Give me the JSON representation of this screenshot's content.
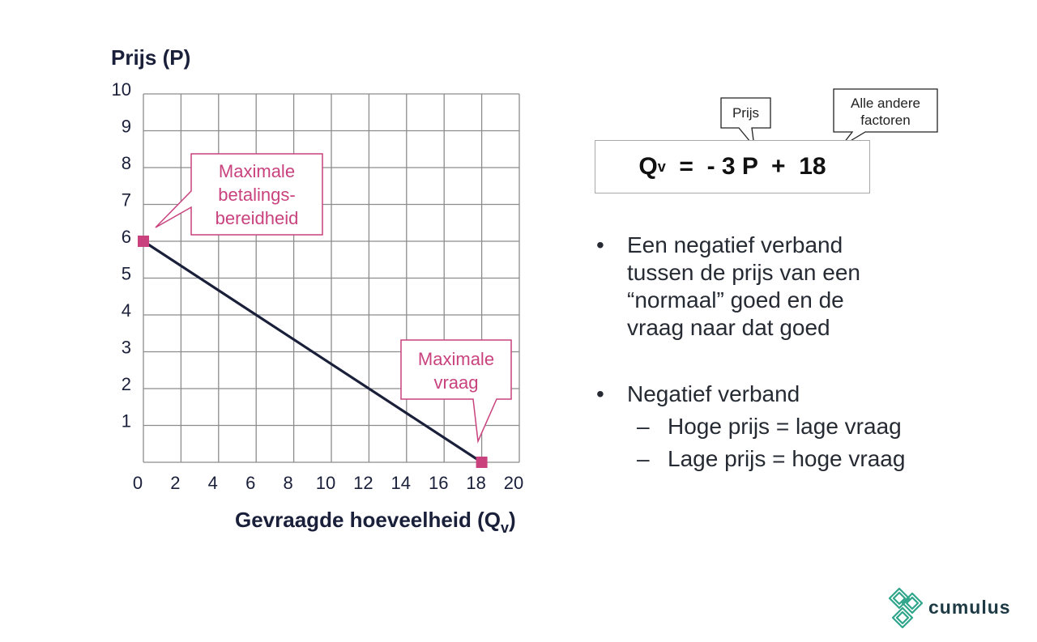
{
  "chart_data": {
    "type": "line",
    "ylabel": "Prijs (P)",
    "xlabel_main": "Gevraagde hoeveelheid (Q",
    "xlabel_sub": "v",
    "xlabel_end": ")",
    "xlim": [
      0,
      20
    ],
    "ylim": [
      0,
      10
    ],
    "x_ticks": [
      "0",
      "2",
      "4",
      "6",
      "8",
      "10",
      "12",
      "14",
      "16",
      "18",
      "20"
    ],
    "y_ticks": [
      "1",
      "2",
      "3",
      "4",
      "5",
      "6",
      "7",
      "8",
      "9",
      "10"
    ],
    "grid": true,
    "series": [
      {
        "x": [
          0,
          18
        ],
        "y": [
          6,
          0
        ]
      }
    ],
    "markers": [
      {
        "x": 0,
        "y": 6
      },
      {
        "x": 18,
        "y": 0
      }
    ],
    "annotations": [
      {
        "lines": [
          "Maximale",
          "betalings-",
          "bereidheid"
        ]
      },
      {
        "lines": [
          "Maximale",
          "vraag"
        ]
      }
    ]
  },
  "equation": {
    "q": "Q",
    "q_sub": "v",
    "rest": "  =  - 3 P  +  18"
  },
  "tags": {
    "prijs": "Prijs",
    "andere_line1": "Alle andere",
    "andere_line2": "factoren"
  },
  "bullets": [
    {
      "text_lines": [
        "Een negatief verband",
        "tussen de prijs van een",
        "“normaal” goed en de",
        "vraag naar dat goed"
      ]
    },
    {
      "text_lines": [
        "Negatief verband"
      ],
      "subs": [
        "Hoge prijs = lage vraag",
        "Lage prijs = hoge vraag"
      ]
    }
  ],
  "bullet_symbol": "•",
  "dash_symbol": "–",
  "logo": {
    "text": "cumulus",
    "icon": "cumulus-logo-icon",
    "color": "#2fa58b"
  },
  "colors": {
    "accent": "#c9427e",
    "line": "#1a1f3a",
    "grid": "#8c8c8c"
  }
}
